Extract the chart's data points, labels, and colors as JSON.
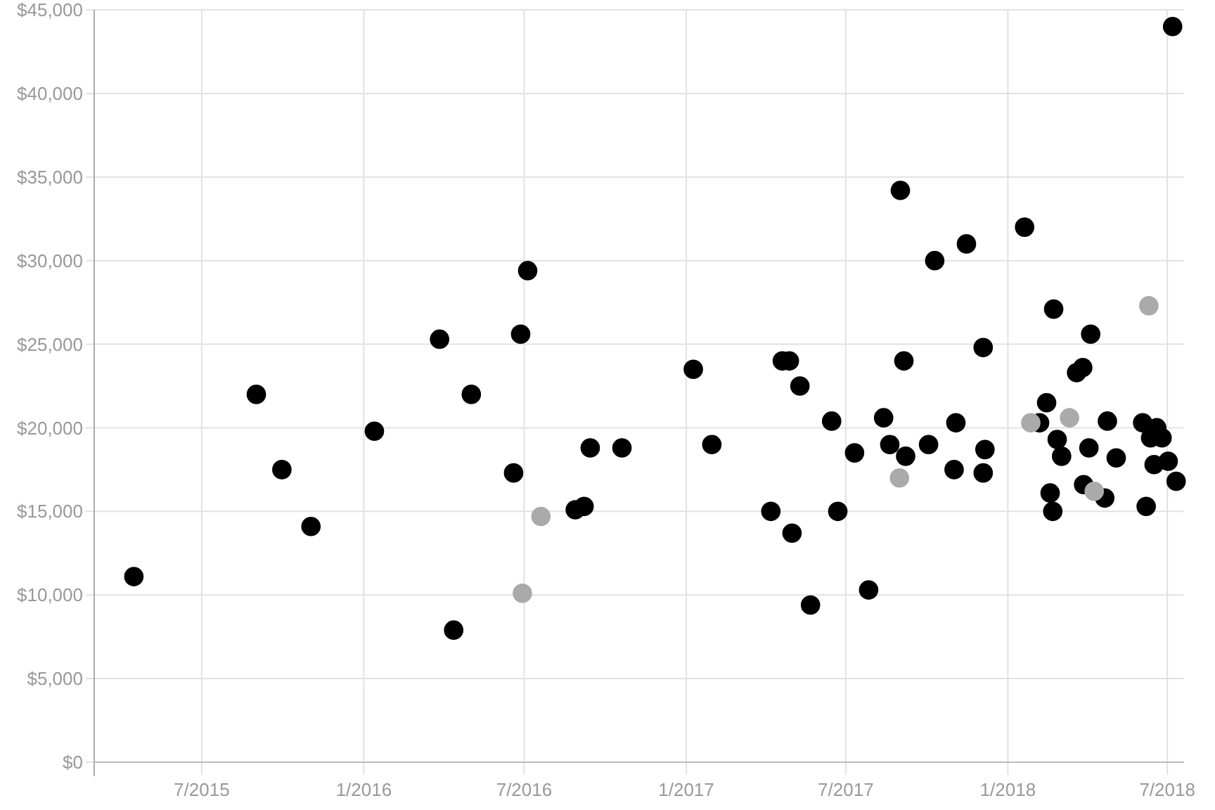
{
  "chart_data": {
    "type": "scatter",
    "xlim": [
      "2015-03-01",
      "2018-07-20"
    ],
    "ylim": [
      0,
      45000
    ],
    "xticks": [
      {
        "value": "2015-07-01",
        "label": "7/2015"
      },
      {
        "value": "2016-01-01",
        "label": "1/2016"
      },
      {
        "value": "2016-07-01",
        "label": "7/2016"
      },
      {
        "value": "2017-01-01",
        "label": "1/2017"
      },
      {
        "value": "2017-07-01",
        "label": "7/2017"
      },
      {
        "value": "2018-01-01",
        "label": "1/2018"
      },
      {
        "value": "2018-07-01",
        "label": "7/2018"
      }
    ],
    "yticks": [
      {
        "value": 0,
        "label": "$0"
      },
      {
        "value": 5000,
        "label": "$5,000"
      },
      {
        "value": 10000,
        "label": "$10,000"
      },
      {
        "value": 15000,
        "label": "$15,000"
      },
      {
        "value": 20000,
        "label": "$20,000"
      },
      {
        "value": 25000,
        "label": "$25,000"
      },
      {
        "value": 30000,
        "label": "$30,000"
      },
      {
        "value": 35000,
        "label": "$35,000"
      },
      {
        "value": 40000,
        "label": "$40,000"
      },
      {
        "value": 45000,
        "label": "$45,000"
      }
    ],
    "grid": true,
    "marker": "circle",
    "series": [
      {
        "color": "#000000",
        "x": [
          "2015-04-15",
          "2015-09-01",
          "2015-09-30",
          "2015-11-02",
          "2016-01-13",
          "2016-03-27",
          "2016-04-12",
          "2016-05-02",
          "2016-06-19",
          "2016-06-27",
          "2016-07-05",
          "2016-08-28",
          "2016-09-07",
          "2016-09-14",
          "2016-10-20",
          "2017-01-09",
          "2017-01-30",
          "2017-04-07",
          "2017-04-20",
          "2017-04-28",
          "2017-05-01",
          "2017-05-10",
          "2017-05-22",
          "2017-06-15",
          "2017-06-22",
          "2017-07-11",
          "2017-07-27",
          "2017-08-13",
          "2017-08-20",
          "2017-09-01",
          "2017-09-05",
          "2017-09-07",
          "2017-10-03",
          "2017-10-10",
          "2017-11-01",
          "2017-11-03",
          "2017-11-15",
          "2017-12-04",
          "2017-12-06",
          "2017-12-04",
          "2018-01-20",
          "2018-02-22",
          "2018-04-05",
          "2018-03-20",
          "2018-03-27",
          "2018-02-14",
          "2018-02-06",
          "2018-04-24",
          "2018-06-03",
          "2018-06-19",
          "2018-06-12",
          "2018-06-25",
          "2018-02-26",
          "2018-03-03",
          "2018-04-03",
          "2018-05-04",
          "2018-07-02",
          "2018-06-16",
          "2018-07-11",
          "2018-03-28",
          "2018-04-21",
          "2018-02-18",
          "2018-02-21",
          "2018-06-07",
          "2018-07-07"
        ],
        "values": [
          11100,
          22000,
          17500,
          14100,
          19800,
          25300,
          7900,
          22000,
          17300,
          25600,
          29400,
          15100,
          15300,
          18800,
          18800,
          23500,
          19000,
          15000,
          24000,
          24000,
          13700,
          22500,
          9400,
          20400,
          15000,
          18500,
          10300,
          20600,
          19000,
          34200,
          24000,
          18300,
          19000,
          30000,
          17500,
          20300,
          31000,
          24800,
          18700,
          17300,
          32000,
          27100,
          25600,
          23300,
          23600,
          21500,
          20300,
          20400,
          20300,
          20000,
          19400,
          19400,
          19300,
          18300,
          18800,
          18200,
          18000,
          17800,
          16800,
          16600,
          15800,
          16100,
          15000,
          15300,
          44000
        ]
      },
      {
        "color": "#aaaaaa",
        "x": [
          "2016-06-29",
          "2016-07-20",
          "2017-08-31",
          "2018-01-27",
          "2018-03-12",
          "2018-04-09",
          "2018-06-10"
        ],
        "values": [
          10100,
          14700,
          17000,
          20300,
          20600,
          16200,
          27300
        ]
      }
    ]
  }
}
